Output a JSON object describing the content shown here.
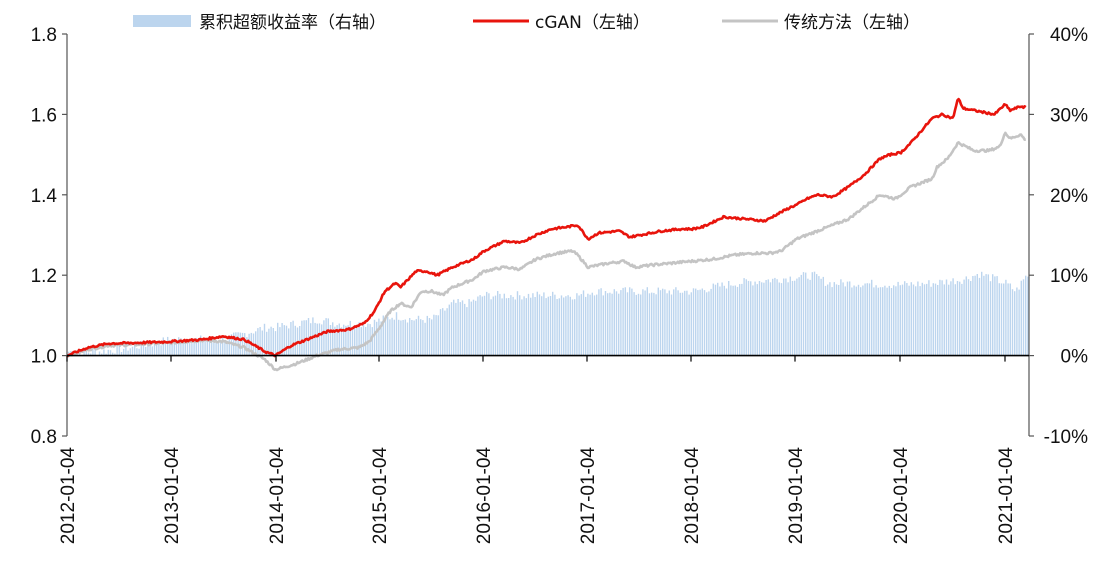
{
  "chart_data": {
    "type": "line",
    "title": "",
    "xlabel": "",
    "ylabel": "",
    "x_ticks": [
      "2012-01-04",
      "2013-01-04",
      "2014-01-04",
      "2015-01-04",
      "2016-01-04",
      "2017-01-04",
      "2018-01-04",
      "2019-01-04",
      "2020-01-04",
      "2021-01-04"
    ],
    "x_range": [
      2012.0,
      2021.25
    ],
    "y_left": {
      "ticks": [
        "0.8",
        "1.0",
        "1.2",
        "1.4",
        "1.6",
        "1.8"
      ],
      "range": [
        0.8,
        1.8
      ]
    },
    "y_right": {
      "ticks": [
        "-10%",
        "0%",
        "10%",
        "20%",
        "30%",
        "40%"
      ],
      "range": [
        -10,
        40
      ],
      "unit": "%"
    },
    "grid": false,
    "legend_position": "top",
    "series": [
      {
        "name": "累积超额收益率（右轴）",
        "type": "bar",
        "axis": "right",
        "color": "#bcd5ee",
        "points": [
          [
            2012.0,
            0.5
          ],
          [
            2012.3,
            0.5
          ],
          [
            2012.6,
            1
          ],
          [
            2013.0,
            2
          ],
          [
            2013.5,
            2
          ],
          [
            2013.9,
            3.5
          ],
          [
            2014.0,
            3.5
          ],
          [
            2014.4,
            4.5
          ],
          [
            2014.6,
            4
          ],
          [
            2014.9,
            4
          ],
          [
            2015.15,
            5
          ],
          [
            2015.3,
            4.5
          ],
          [
            2015.5,
            4.5
          ],
          [
            2015.7,
            6.5
          ],
          [
            2015.85,
            6.5
          ],
          [
            2016.0,
            7.5
          ],
          [
            2016.05,
            7.5
          ],
          [
            2016.5,
            7.5
          ],
          [
            2016.9,
            7.5
          ],
          [
            2017.05,
            8
          ],
          [
            2017.5,
            8
          ],
          [
            2018.0,
            8
          ],
          [
            2018.4,
            9
          ],
          [
            2018.8,
            9.5
          ],
          [
            2019.0,
            9.8
          ],
          [
            2019.15,
            10
          ],
          [
            2019.3,
            9
          ],
          [
            2019.6,
            9
          ],
          [
            2020.0,
            8.8
          ],
          [
            2020.3,
            9
          ],
          [
            2020.6,
            9.5
          ],
          [
            2020.75,
            10.2
          ],
          [
            2020.9,
            9.5
          ],
          [
            2021.0,
            9
          ],
          [
            2021.1,
            8
          ],
          [
            2021.2,
            10
          ]
        ]
      },
      {
        "name": "cGAN（左轴）",
        "type": "line",
        "axis": "left",
        "color": "#e8140c",
        "points": [
          [
            2012.0,
            1.0
          ],
          [
            2012.2,
            1.02
          ],
          [
            2012.4,
            1.03
          ],
          [
            2012.7,
            1.032
          ],
          [
            2013.0,
            1.035
          ],
          [
            2013.3,
            1.04
          ],
          [
            2013.5,
            1.048
          ],
          [
            2013.7,
            1.04
          ],
          [
            2013.9,
            1.01
          ],
          [
            2014.0,
            1.0
          ],
          [
            2014.15,
            1.025
          ],
          [
            2014.3,
            1.04
          ],
          [
            2014.5,
            1.06
          ],
          [
            2014.7,
            1.065
          ],
          [
            2014.85,
            1.08
          ],
          [
            2014.95,
            1.11
          ],
          [
            2015.05,
            1.16
          ],
          [
            2015.15,
            1.18
          ],
          [
            2015.2,
            1.17
          ],
          [
            2015.35,
            1.21
          ],
          [
            2015.45,
            1.21
          ],
          [
            2015.55,
            1.2
          ],
          [
            2015.7,
            1.22
          ],
          [
            2015.8,
            1.23
          ],
          [
            2015.9,
            1.24
          ],
          [
            2016.0,
            1.26
          ],
          [
            2016.2,
            1.285
          ],
          [
            2016.35,
            1.28
          ],
          [
            2016.5,
            1.3
          ],
          [
            2016.65,
            1.315
          ],
          [
            2016.8,
            1.32
          ],
          [
            2016.9,
            1.325
          ],
          [
            2017.0,
            1.29
          ],
          [
            2017.1,
            1.305
          ],
          [
            2017.3,
            1.31
          ],
          [
            2017.4,
            1.295
          ],
          [
            2017.5,
            1.3
          ],
          [
            2017.7,
            1.31
          ],
          [
            2017.9,
            1.315
          ],
          [
            2018.0,
            1.315
          ],
          [
            2018.1,
            1.32
          ],
          [
            2018.3,
            1.345
          ],
          [
            2018.5,
            1.34
          ],
          [
            2018.7,
            1.335
          ],
          [
            2018.8,
            1.35
          ],
          [
            2018.95,
            1.37
          ],
          [
            2019.0,
            1.375
          ],
          [
            2019.1,
            1.39
          ],
          [
            2019.2,
            1.4
          ],
          [
            2019.35,
            1.395
          ],
          [
            2019.5,
            1.42
          ],
          [
            2019.65,
            1.45
          ],
          [
            2019.8,
            1.49
          ],
          [
            2019.9,
            1.5
          ],
          [
            2020.0,
            1.505
          ],
          [
            2020.1,
            1.53
          ],
          [
            2020.2,
            1.56
          ],
          [
            2020.3,
            1.59
          ],
          [
            2020.4,
            1.6
          ],
          [
            2020.5,
            1.59
          ],
          [
            2020.55,
            1.64
          ],
          [
            2020.6,
            1.615
          ],
          [
            2020.7,
            1.61
          ],
          [
            2020.8,
            1.605
          ],
          [
            2020.9,
            1.6
          ],
          [
            2021.0,
            1.625
          ],
          [
            2021.05,
            1.61
          ],
          [
            2021.15,
            1.62
          ],
          [
            2021.25,
            1.615
          ]
        ]
      },
      {
        "name": "传统方法（左轴）",
        "type": "line",
        "axis": "left",
        "color": "#c4c4c4",
        "points": [
          [
            2012.0,
            1.0
          ],
          [
            2012.2,
            1.015
          ],
          [
            2012.4,
            1.025
          ],
          [
            2012.7,
            1.028
          ],
          [
            2013.0,
            1.032
          ],
          [
            2013.3,
            1.038
          ],
          [
            2013.5,
            1.035
          ],
          [
            2013.7,
            1.02
          ],
          [
            2013.9,
            0.99
          ],
          [
            2014.0,
            0.965
          ],
          [
            2014.2,
            0.98
          ],
          [
            2014.4,
            1.0
          ],
          [
            2014.6,
            1.015
          ],
          [
            2014.8,
            1.02
          ],
          [
            2014.9,
            1.035
          ],
          [
            2015.0,
            1.07
          ],
          [
            2015.1,
            1.11
          ],
          [
            2015.2,
            1.13
          ],
          [
            2015.3,
            1.12
          ],
          [
            2015.4,
            1.16
          ],
          [
            2015.5,
            1.16
          ],
          [
            2015.6,
            1.15
          ],
          [
            2015.7,
            1.17
          ],
          [
            2015.8,
            1.18
          ],
          [
            2015.9,
            1.19
          ],
          [
            2016.0,
            1.21
          ],
          [
            2016.2,
            1.22
          ],
          [
            2016.35,
            1.215
          ],
          [
            2016.5,
            1.24
          ],
          [
            2016.7,
            1.255
          ],
          [
            2016.85,
            1.26
          ],
          [
            2016.9,
            1.25
          ],
          [
            2017.0,
            1.22
          ],
          [
            2017.2,
            1.23
          ],
          [
            2017.35,
            1.235
          ],
          [
            2017.45,
            1.22
          ],
          [
            2017.6,
            1.225
          ],
          [
            2017.8,
            1.23
          ],
          [
            2018.0,
            1.235
          ],
          [
            2018.2,
            1.24
          ],
          [
            2018.4,
            1.25
          ],
          [
            2018.6,
            1.255
          ],
          [
            2018.75,
            1.255
          ],
          [
            2018.85,
            1.26
          ],
          [
            2019.0,
            1.29
          ],
          [
            2019.2,
            1.31
          ],
          [
            2019.3,
            1.32
          ],
          [
            2019.5,
            1.34
          ],
          [
            2019.65,
            1.37
          ],
          [
            2019.8,
            1.4
          ],
          [
            2019.95,
            1.39
          ],
          [
            2020.1,
            1.42
          ],
          [
            2020.3,
            1.44
          ],
          [
            2020.35,
            1.47
          ],
          [
            2020.45,
            1.49
          ],
          [
            2020.55,
            1.53
          ],
          [
            2020.7,
            1.51
          ],
          [
            2020.85,
            1.51
          ],
          [
            2020.95,
            1.52
          ],
          [
            2021.0,
            1.555
          ],
          [
            2021.05,
            1.54
          ],
          [
            2021.15,
            1.55
          ],
          [
            2021.25,
            1.52
          ]
        ]
      }
    ]
  }
}
